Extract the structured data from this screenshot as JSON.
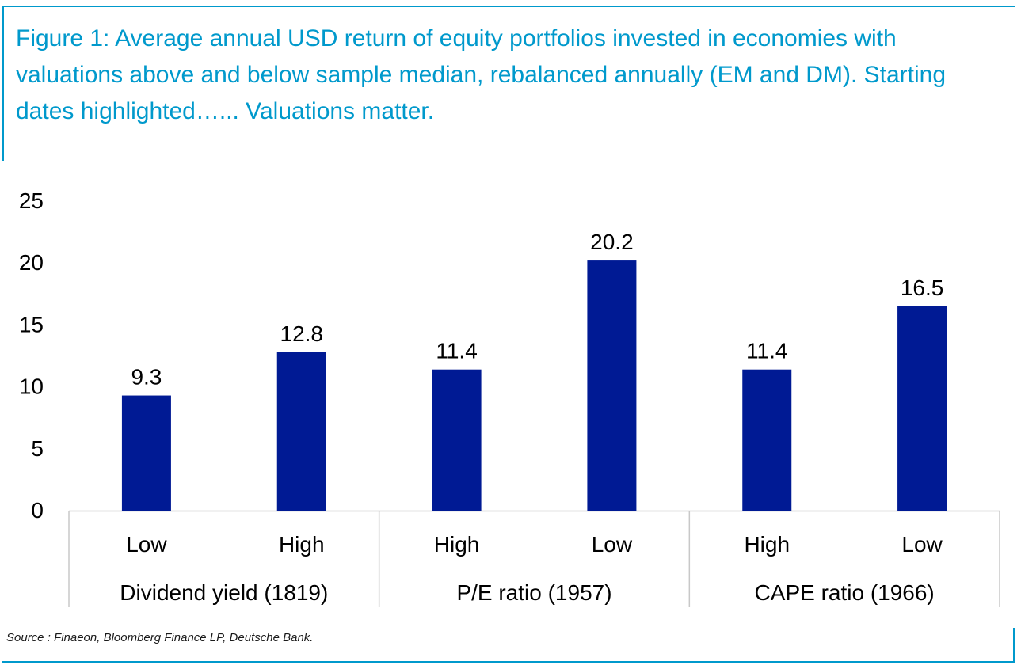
{
  "title": "Figure 1: Average annual USD return of equity portfolios invested in economies with valuations above and below sample median, rebalanced annually (EM and DM). Starting dates highlighted…... Valuations matter.",
  "source": "Source : Finaeon, Bloomberg Finance LP, Deutsche Bank.",
  "colors": {
    "accent": "#0099cc",
    "bar": "#001a94"
  },
  "chart_data": {
    "type": "bar",
    "groups": [
      {
        "label": "Dividend yield (1819)",
        "categories": [
          "Low",
          "High"
        ],
        "values": [
          9.3,
          12.8
        ]
      },
      {
        "label": "P/E ratio (1957)",
        "categories": [
          "High",
          "Low"
        ],
        "values": [
          11.4,
          20.2
        ]
      },
      {
        "label": "CAPE ratio (1966)",
        "categories": [
          "High",
          "Low"
        ],
        "values": [
          11.4,
          16.5
        ]
      }
    ],
    "value_labels": [
      "9.3",
      "12.8",
      "11.4",
      "20.2",
      "11.4",
      "16.5"
    ],
    "yticks": [
      0,
      5,
      10,
      15,
      20,
      25
    ],
    "ylim": [
      0,
      25
    ],
    "grid": false,
    "legend": "none"
  }
}
